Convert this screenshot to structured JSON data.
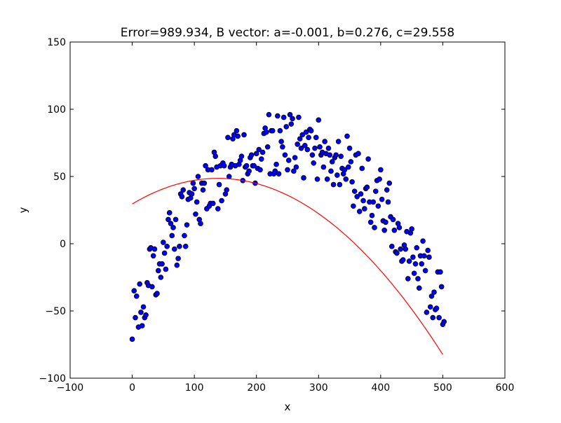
{
  "chart_data": {
    "type": "scatter",
    "title": "Error=989.934, B vector: a=-0.001, b=0.276, c=29.558",
    "xlabel": "x",
    "ylabel": "y",
    "xlim": [
      -100,
      600
    ],
    "ylim": [
      -100,
      150
    ],
    "xticks": [
      -100,
      0,
      100,
      200,
      300,
      400,
      500,
      600
    ],
    "yticks": [
      -100,
      -50,
      0,
      50,
      100,
      150
    ],
    "xtick_labels": [
      "−100",
      "0",
      "100",
      "200",
      "300",
      "400",
      "500",
      "600"
    ],
    "ytick_labels": [
      "−100",
      "−50",
      "0",
      "50",
      "100",
      "150"
    ],
    "grid": false,
    "colors": {
      "points": "#0000ff",
      "point_edge": "#000000",
      "fit_line": "#ff0000",
      "axes": "#000000"
    },
    "fit": {
      "a": -0.001,
      "b": 0.276,
      "c": 29.558,
      "x_range": [
        0,
        500
      ]
    },
    "series": [
      {
        "values": [
          [
            0,
            -71
          ],
          [
            3,
            -35
          ],
          [
            5,
            -55
          ],
          [
            7,
            -39
          ],
          [
            10,
            -62
          ],
          [
            12,
            -30
          ],
          [
            14,
            -51
          ],
          [
            16,
            -61
          ],
          [
            18,
            -47
          ],
          [
            20,
            -55
          ],
          [
            22,
            -53
          ],
          [
            24,
            -29
          ],
          [
            26,
            -31
          ],
          [
            28,
            -4
          ],
          [
            30,
            -3
          ],
          [
            32,
            -32
          ],
          [
            34,
            -9
          ],
          [
            36,
            -4
          ],
          [
            38,
            -38
          ],
          [
            40,
            -37
          ],
          [
            42,
            -20
          ],
          [
            44,
            -15
          ],
          [
            46,
            -25
          ],
          [
            48,
            -15
          ],
          [
            50,
            1
          ],
          [
            52,
            -7
          ],
          [
            54,
            -19
          ],
          [
            56,
            -2
          ],
          [
            58,
            18
          ],
          [
            60,
            23
          ],
          [
            62,
            15
          ],
          [
            64,
            6
          ],
          [
            66,
            12
          ],
          [
            68,
            -4
          ],
          [
            70,
            18
          ],
          [
            72,
            -16
          ],
          [
            74,
            -11
          ],
          [
            76,
            -2
          ],
          [
            78,
            37
          ],
          [
            80,
            35
          ],
          [
            82,
            40
          ],
          [
            84,
            6
          ],
          [
            86,
            -2
          ],
          [
            88,
            14
          ],
          [
            90,
            33
          ],
          [
            92,
            38
          ],
          [
            94,
            34
          ],
          [
            96,
            37
          ],
          [
            98,
            45
          ],
          [
            100,
            41
          ],
          [
            102,
            22
          ],
          [
            104,
            31
          ],
          [
            106,
            50
          ],
          [
            108,
            18
          ],
          [
            110,
            15
          ],
          [
            112,
            45
          ],
          [
            114,
            40
          ],
          [
            116,
            45
          ],
          [
            118,
            58
          ],
          [
            120,
            26
          ],
          [
            122,
            55
          ],
          [
            124,
            28
          ],
          [
            126,
            30
          ],
          [
            128,
            55
          ],
          [
            130,
            30
          ],
          [
            132,
            68
          ],
          [
            134,
            65
          ],
          [
            136,
            57
          ],
          [
            138,
            26
          ],
          [
            140,
            44
          ],
          [
            142,
            58
          ],
          [
            144,
            32
          ],
          [
            146,
            60
          ],
          [
            148,
            58
          ],
          [
            150,
            37
          ],
          [
            152,
            40
          ],
          [
            154,
            79
          ],
          [
            156,
            50
          ],
          [
            158,
            57
          ],
          [
            160,
            59
          ],
          [
            162,
            78
          ],
          [
            164,
            81
          ],
          [
            166,
            58
          ],
          [
            168,
            84
          ],
          [
            170,
            80
          ],
          [
            172,
            59
          ],
          [
            174,
            62
          ],
          [
            176,
            65
          ],
          [
            178,
            47
          ],
          [
            180,
            81
          ],
          [
            182,
            57
          ],
          [
            184,
            58
          ],
          [
            186,
            52
          ],
          [
            188,
            54
          ],
          [
            190,
            64
          ],
          [
            192,
            66
          ],
          [
            194,
            58
          ],
          [
            196,
            58
          ],
          [
            198,
            45
          ],
          [
            200,
            67
          ],
          [
            202,
            56
          ],
          [
            204,
            70
          ],
          [
            206,
            55
          ],
          [
            208,
            63
          ],
          [
            210,
            68
          ],
          [
            212,
            82
          ],
          [
            214,
            86
          ],
          [
            216,
            83
          ],
          [
            218,
            72
          ],
          [
            220,
            96
          ],
          [
            222,
            52
          ],
          [
            224,
            84
          ],
          [
            226,
            84
          ],
          [
            228,
            52
          ],
          [
            230,
            54
          ],
          [
            232,
            59
          ],
          [
            234,
            95
          ],
          [
            236,
            52
          ],
          [
            238,
            84
          ],
          [
            240,
            76
          ],
          [
            242,
            72
          ],
          [
            244,
            94
          ],
          [
            246,
            66
          ],
          [
            248,
            87
          ],
          [
            250,
            55
          ],
          [
            252,
            62
          ],
          [
            254,
            96
          ],
          [
            256,
            89
          ],
          [
            258,
            93
          ],
          [
            260,
            54
          ],
          [
            262,
            64
          ],
          [
            264,
            57
          ],
          [
            266,
            74
          ],
          [
            268,
            94
          ],
          [
            270,
            78
          ],
          [
            272,
            71
          ],
          [
            274,
            81
          ],
          [
            276,
            49
          ],
          [
            278,
            73
          ],
          [
            280,
            83
          ],
          [
            282,
            70
          ],
          [
            284,
            79
          ],
          [
            286,
            85
          ],
          [
            288,
            84
          ],
          [
            290,
            66
          ],
          [
            292,
            60
          ],
          [
            294,
            71
          ],
          [
            296,
            79
          ],
          [
            298,
            48
          ],
          [
            300,
            92
          ],
          [
            302,
            72
          ],
          [
            304,
            66
          ],
          [
            306,
            68
          ],
          [
            308,
            57
          ],
          [
            310,
            76
          ],
          [
            312,
            67
          ],
          [
            314,
            48
          ],
          [
            316,
            71
          ],
          [
            318,
            66
          ],
          [
            320,
            54
          ],
          [
            322,
            61
          ],
          [
            324,
            44
          ],
          [
            326,
            64
          ],
          [
            328,
            66
          ],
          [
            330,
            51
          ],
          [
            332,
            76
          ],
          [
            334,
            44
          ],
          [
            336,
            65
          ],
          [
            338,
            56
          ],
          [
            340,
            52
          ],
          [
            342,
            55
          ],
          [
            344,
            48
          ],
          [
            346,
            80
          ],
          [
            348,
            57
          ],
          [
            350,
            71
          ],
          [
            352,
            61
          ],
          [
            354,
            46
          ],
          [
            356,
            28
          ],
          [
            358,
            39
          ],
          [
            360,
            66
          ],
          [
            362,
            35
          ],
          [
            364,
            67
          ],
          [
            366,
            24
          ],
          [
            368,
            37
          ],
          [
            370,
            56
          ],
          [
            372,
            32
          ],
          [
            374,
            26
          ],
          [
            376,
            41
          ],
          [
            378,
            42
          ],
          [
            380,
            63
          ],
          [
            382,
            31
          ],
          [
            384,
            16
          ],
          [
            386,
            21
          ],
          [
            388,
            31
          ],
          [
            390,
            12
          ],
          [
            392,
            39
          ],
          [
            394,
            47
          ],
          [
            396,
            28
          ],
          [
            398,
            48
          ],
          [
            400,
            55
          ],
          [
            402,
            33
          ],
          [
            404,
            17
          ],
          [
            406,
            10
          ],
          [
            408,
            16
          ],
          [
            410,
            40
          ],
          [
            412,
            31
          ],
          [
            414,
            45
          ],
          [
            416,
            20
          ],
          [
            418,
            -2
          ],
          [
            420,
            18
          ],
          [
            422,
            10
          ],
          [
            424,
            -6
          ],
          [
            426,
            -7
          ],
          [
            428,
            15
          ],
          [
            430,
            12
          ],
          [
            432,
            -4
          ],
          [
            434,
            -13
          ],
          [
            436,
            -12
          ],
          [
            438,
            -1
          ],
          [
            440,
            -4
          ],
          [
            442,
            9
          ],
          [
            444,
            -26
          ],
          [
            446,
            -13
          ],
          [
            448,
            8
          ],
          [
            450,
            11
          ],
          [
            452,
            -10
          ],
          [
            454,
            -22
          ],
          [
            456,
            -15
          ],
          [
            458,
            -3
          ],
          [
            460,
            -26
          ],
          [
            462,
            -33
          ],
          [
            464,
            -9
          ],
          [
            466,
            -15
          ],
          [
            468,
            2
          ],
          [
            470,
            -9
          ],
          [
            472,
            -20
          ],
          [
            474,
            -51
          ],
          [
            476,
            -5
          ],
          [
            478,
            -10
          ],
          [
            480,
            -47
          ],
          [
            482,
            -39
          ],
          [
            484,
            -55
          ],
          [
            486,
            -36
          ],
          [
            488,
            -49
          ],
          [
            490,
            -48
          ],
          [
            492,
            -21
          ],
          [
            494,
            -55
          ],
          [
            496,
            -21
          ],
          [
            498,
            -32
          ],
          [
            500,
            -60
          ],
          [
            502,
            -58
          ]
        ]
      }
    ]
  }
}
